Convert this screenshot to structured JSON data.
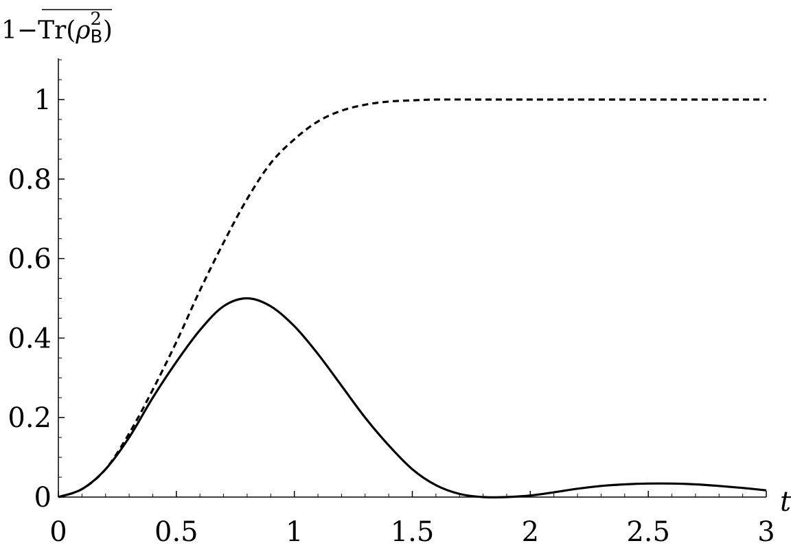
{
  "chart_data": {
    "type": "line",
    "title": "",
    "xlabel": "t",
    "ylabel": {
      "prefix": "1−",
      "trace": "Tr(",
      "symbol": "ρ",
      "superscript": "2",
      "subscript": "B",
      "close": ")"
    },
    "xlim": [
      0,
      3
    ],
    "ylim": [
      0,
      1.1
    ],
    "xticks": [
      0,
      0.5,
      1,
      1.5,
      2,
      2.5,
      3
    ],
    "xtick_labels": [
      "0",
      "0.5",
      "1",
      "1.5",
      "2",
      "2.5",
      "3"
    ],
    "yticks": [
      0,
      0.2,
      0.4,
      0.6,
      0.8,
      1
    ],
    "ytick_labels": [
      "0",
      "0.2",
      "0.4",
      "0.6",
      "0.8",
      "1"
    ],
    "grid": false,
    "legend": "none",
    "series": [
      {
        "style": "dashed",
        "color": "#000000",
        "x": [
          0,
          0.1,
          0.2,
          0.3,
          0.4,
          0.5,
          0.6,
          0.7,
          0.8,
          0.9,
          1.0,
          1.1,
          1.2,
          1.3,
          1.4,
          1.5,
          1.6,
          1.8,
          2.0,
          2.5,
          3.0
        ],
        "y": [
          0,
          0.02,
          0.07,
          0.16,
          0.27,
          0.39,
          0.52,
          0.64,
          0.75,
          0.84,
          0.9,
          0.945,
          0.972,
          0.987,
          0.995,
          0.998,
          1.0,
          1.0,
          1.0,
          1.0,
          1.0
        ]
      },
      {
        "style": "solid",
        "color": "#000000",
        "x": [
          0,
          0.1,
          0.2,
          0.3,
          0.4,
          0.5,
          0.6,
          0.7,
          0.8,
          0.9,
          1.0,
          1.1,
          1.2,
          1.3,
          1.4,
          1.5,
          1.6,
          1.7,
          1.8,
          1.9,
          2.0,
          2.1,
          2.2,
          2.3,
          2.4,
          2.5,
          2.6,
          2.7,
          2.8,
          2.9,
          3.0
        ],
        "y": [
          0,
          0.02,
          0.07,
          0.15,
          0.25,
          0.34,
          0.42,
          0.48,
          0.5,
          0.48,
          0.43,
          0.36,
          0.28,
          0.2,
          0.13,
          0.07,
          0.03,
          0.008,
          0.0,
          0.0,
          0.004,
          0.012,
          0.021,
          0.028,
          0.032,
          0.034,
          0.034,
          0.032,
          0.028,
          0.023,
          0.017
        ]
      }
    ]
  }
}
